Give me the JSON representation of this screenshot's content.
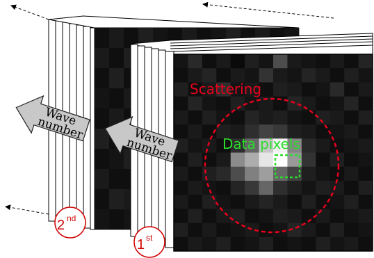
{
  "labels": {
    "wave_number_line1": "Wave",
    "wave_number_line2": "number",
    "scattering": "Scattering",
    "data_pixels": "Data pixels",
    "first_main": "1",
    "first_sup": "st",
    "second_main": "2",
    "second_sup": "nd"
  },
  "colors": {
    "scattering": "#e8001c",
    "data_pixels": "#2bdc2b",
    "badge": "#d00000",
    "arrow_fill": "#c8c8c8"
  },
  "front_image_intensity": [
    [
      0.08,
      0.16,
      0.06,
      0.1,
      0.04,
      0.12,
      0.08,
      0.3,
      0.1,
      0.08,
      0.06,
      0.1,
      0.06,
      0.14
    ],
    [
      0.06,
      0.1,
      0.14,
      0.06,
      0.1,
      0.08,
      0.2,
      0.1,
      0.08,
      0.14,
      0.1,
      0.06,
      0.12,
      0.08
    ],
    [
      0.12,
      0.06,
      0.1,
      0.18,
      0.08,
      0.1,
      0.06,
      0.12,
      0.1,
      0.06,
      0.08,
      0.16,
      0.06,
      0.1
    ],
    [
      0.06,
      0.14,
      0.08,
      0.06,
      0.12,
      0.08,
      0.1,
      0.06,
      0.14,
      0.1,
      0.06,
      0.08,
      0.14,
      0.06
    ],
    [
      0.1,
      0.06,
      0.12,
      0.08,
      0.06,
      0.14,
      0.1,
      0.12,
      0.08,
      0.06,
      0.12,
      0.1,
      0.06,
      0.12
    ],
    [
      0.06,
      0.1,
      0.06,
      0.12,
      0.1,
      0.18,
      0.26,
      0.22,
      0.12,
      0.1,
      0.06,
      0.08,
      0.1,
      0.06
    ],
    [
      0.12,
      0.08,
      0.1,
      0.06,
      0.18,
      0.4,
      0.78,
      0.95,
      0.52,
      0.16,
      0.1,
      0.06,
      0.08,
      0.1
    ],
    [
      0.06,
      0.12,
      0.06,
      0.1,
      0.55,
      0.68,
      0.9,
      1.0,
      0.6,
      0.2,
      0.06,
      0.12,
      0.06,
      0.08
    ],
    [
      0.1,
      0.06,
      0.12,
      0.16,
      0.3,
      0.5,
      0.62,
      0.4,
      0.26,
      0.12,
      0.08,
      0.06,
      0.1,
      0.06
    ],
    [
      0.06,
      0.1,
      0.08,
      0.06,
      0.14,
      0.22,
      0.4,
      0.18,
      0.12,
      0.08,
      0.12,
      0.1,
      0.06,
      0.12
    ],
    [
      0.1,
      0.06,
      0.12,
      0.08,
      0.06,
      0.1,
      0.14,
      0.1,
      0.06,
      0.12,
      0.06,
      0.08,
      0.12,
      0.06
    ],
    [
      0.06,
      0.12,
      0.06,
      0.1,
      0.12,
      0.06,
      0.08,
      0.12,
      0.1,
      0.06,
      0.1,
      0.06,
      0.08,
      0.1
    ],
    [
      0.12,
      0.06,
      0.1,
      0.06,
      0.08,
      0.1,
      0.06,
      0.08,
      0.14,
      0.1,
      0.06,
      0.12,
      0.06,
      0.08
    ],
    [
      0.06,
      0.1,
      0.08,
      0.12,
      0.06,
      0.08,
      0.12,
      0.06,
      0.08,
      0.06,
      0.12,
      0.08,
      0.1,
      0.06
    ]
  ],
  "back_image_intensity": [
    [
      0.06,
      0.1,
      0.06,
      0.12,
      0.08,
      0.06,
      0.1,
      0.06,
      0.08,
      0.12,
      0.06,
      0.1,
      0.06,
      0.08
    ],
    [
      0.1,
      0.06,
      0.12,
      0.06,
      0.1,
      0.08,
      0.06,
      0.12,
      0.06,
      0.08,
      0.1,
      0.06,
      0.12,
      0.06
    ],
    [
      0.06,
      0.12,
      0.06,
      0.08,
      0.06,
      0.12,
      0.1,
      0.06,
      0.1,
      0.06,
      0.08,
      0.12,
      0.06,
      0.1
    ],
    [
      0.08,
      0.06,
      0.1,
      0.06,
      0.12,
      0.06,
      0.08,
      0.1,
      0.06,
      0.12,
      0.06,
      0.08,
      0.1,
      0.06
    ],
    [
      0.06,
      0.1,
      0.06,
      0.12,
      0.06,
      0.1,
      0.06,
      0.08,
      0.12,
      0.06,
      0.1,
      0.06,
      0.08,
      0.12
    ],
    [
      0.12,
      0.06,
      0.08,
      0.06,
      0.1,
      0.06,
      0.12,
      0.06,
      0.08,
      0.1,
      0.06,
      0.12,
      0.06,
      0.08
    ],
    [
      0.06,
      0.08,
      0.12,
      0.1,
      0.06,
      0.08,
      0.06,
      0.1,
      0.06,
      0.08,
      0.12,
      0.06,
      0.1,
      0.06
    ],
    [
      0.1,
      0.06,
      0.06,
      0.08,
      0.12,
      0.06,
      0.1,
      0.06,
      0.12,
      0.06,
      0.08,
      0.1,
      0.06,
      0.12
    ],
    [
      0.06,
      0.12,
      0.1,
      0.06,
      0.08,
      0.12,
      0.06,
      0.08,
      0.06,
      0.1,
      0.06,
      0.08,
      0.12,
      0.06
    ],
    [
      0.08,
      0.06,
      0.08,
      0.12,
      0.06,
      0.06,
      0.1,
      0.12,
      0.08,
      0.06,
      0.12,
      0.06,
      0.06,
      0.1
    ]
  ]
}
